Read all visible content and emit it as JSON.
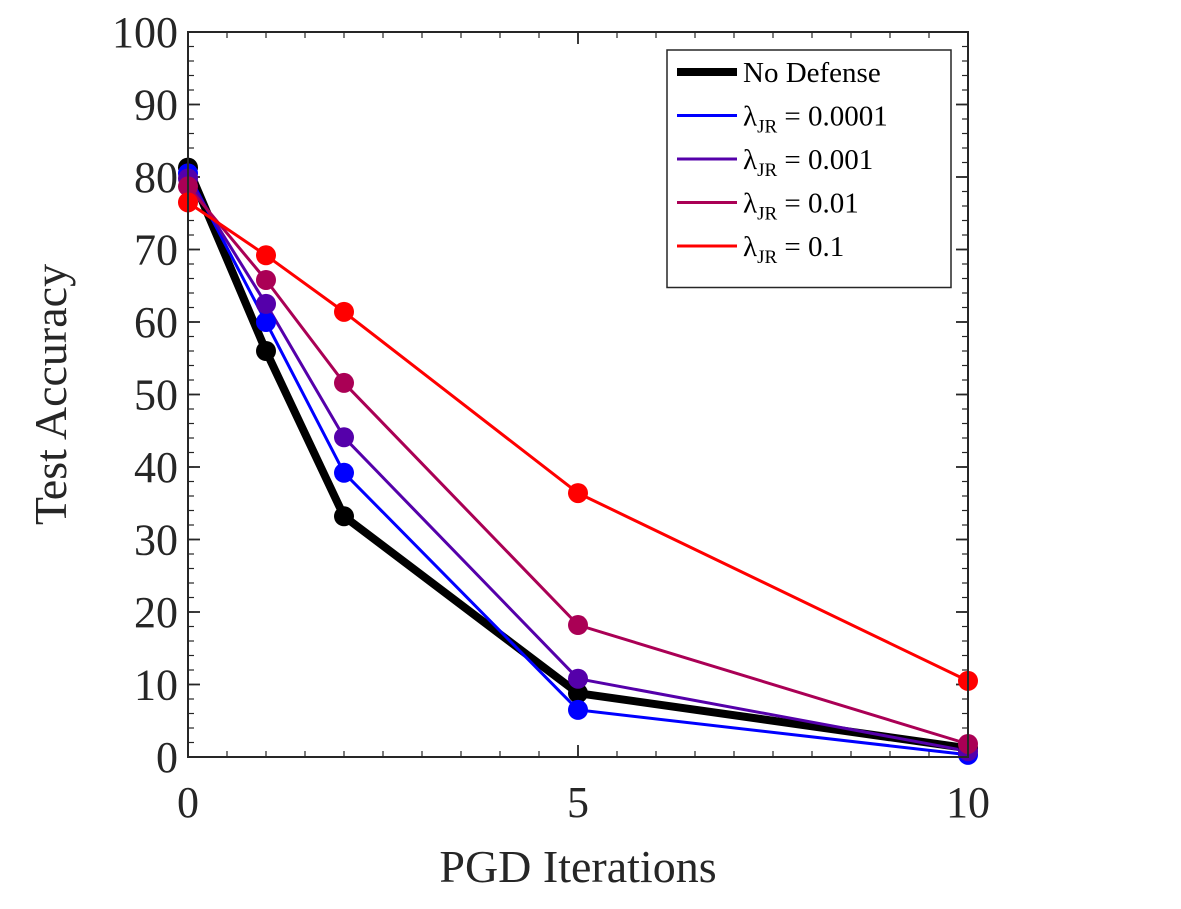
{
  "chart_data": {
    "type": "line",
    "title": "",
    "xlabel": "PGD Iterations",
    "ylabel": "Test Accuracy",
    "xlim": [
      0,
      10
    ],
    "ylim": [
      0,
      100
    ],
    "xticks": [
      0,
      5,
      10
    ],
    "yticks": [
      0,
      10,
      20,
      30,
      40,
      50,
      60,
      70,
      80,
      90,
      100
    ],
    "grid": false,
    "legend_position": "top-right",
    "x": [
      0,
      1,
      2,
      5,
      10
    ],
    "series": [
      {
        "name": "No Defense",
        "legend_main": "No Defense",
        "legend_sub": "",
        "legend_tail": "",
        "color": "#000000",
        "bold": true,
        "values": [
          81.3,
          56.0,
          33.2,
          8.8,
          1.2
        ]
      },
      {
        "name": "λJR = 0.0001",
        "legend_main": "λ",
        "legend_sub": "JR",
        "legend_tail": " = 0.0001",
        "color": "#0000ff",
        "bold": false,
        "values": [
          80.5,
          60.0,
          39.2,
          6.5,
          0.3
        ]
      },
      {
        "name": "λJR = 0.001",
        "legend_main": "λ",
        "legend_sub": "JR",
        "legend_tail": " = 0.001",
        "color": "#5500aa",
        "bold": false,
        "values": [
          79.8,
          62.5,
          44.1,
          10.8,
          0.8
        ]
      },
      {
        "name": "λJR = 0.01",
        "legend_main": "λ",
        "legend_sub": "JR",
        "legend_tail": " = 0.01",
        "color": "#aa0055",
        "bold": false,
        "values": [
          78.7,
          65.8,
          51.6,
          18.2,
          1.8
        ]
      },
      {
        "name": "λJR = 0.1",
        "legend_main": "λ",
        "legend_sub": "JR",
        "legend_tail": " = 0.1",
        "color": "#ff0000",
        "bold": false,
        "values": [
          76.5,
          69.2,
          61.4,
          36.4,
          10.5
        ]
      }
    ]
  }
}
